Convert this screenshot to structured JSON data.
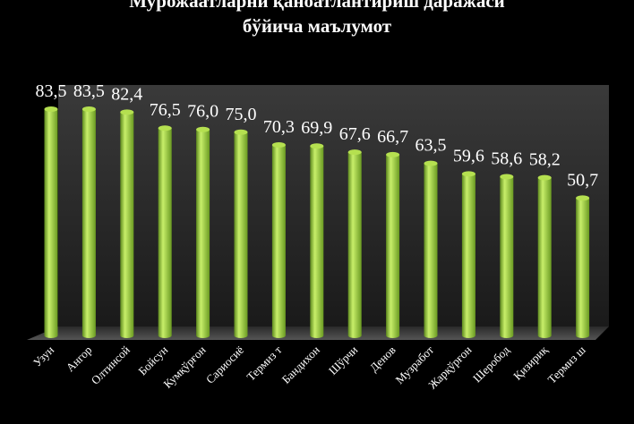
{
  "chart_data": {
    "type": "bar",
    "title": [
      "Мурожаатларни қаноатлантириш даражаси",
      "бўйича маълумот"
    ],
    "categories": [
      "Узун",
      "Ангор",
      "Олтинсой",
      "Бойсун",
      "Кумқўрғон",
      "Сариосиё",
      "Термиз т",
      "Бандихон",
      "Шўрчи",
      "Денов",
      "Музработ",
      "Жарқўрғон",
      "Шеробод",
      "Қизириқ",
      "Термиз ш"
    ],
    "values": [
      83.5,
      83.5,
      82.4,
      76.5,
      76.0,
      75.0,
      70.3,
      69.9,
      67.6,
      66.7,
      63.5,
      59.6,
      58.6,
      58.2,
      50.7
    ],
    "value_labels": [
      "83,5",
      "83,5",
      "82,4",
      "76,5",
      "76,0",
      "75,0",
      "70,3",
      "69,9",
      "67,6",
      "66,7",
      "63,5",
      "59,6",
      "58,6",
      "58,2",
      "50,7"
    ],
    "color": "#9acd32"
  }
}
